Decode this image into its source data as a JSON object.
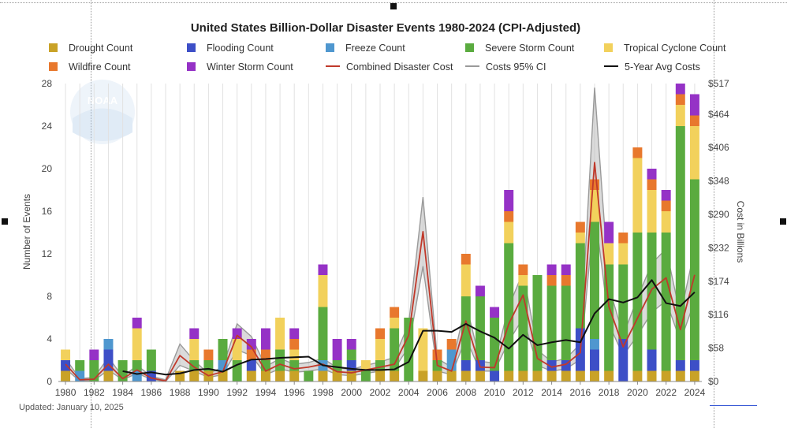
{
  "chart_data": {
    "type": "bar",
    "title": "United States Billion-Dollar Disaster Events 1980-2024 (CPI-Adjusted)",
    "ylabel": "Number of Events",
    "y2label": "Cost in Billions",
    "ylim": [
      0,
      28
    ],
    "y2lim": [
      0,
      517
    ],
    "yticks": [
      "0",
      "4",
      "8",
      "12",
      "16",
      "20",
      "24",
      "28"
    ],
    "y2ticks": [
      "$0",
      "$58",
      "$116",
      "$174",
      "$232",
      "$290",
      "$348",
      "$406",
      "$464",
      "$517"
    ],
    "xticks": [
      "1980",
      "1982",
      "1984",
      "1986",
      "1988",
      "1990",
      "1992",
      "1994",
      "1996",
      "1998",
      "2000",
      "2002",
      "2004",
      "2006",
      "2008",
      "2010",
      "2012",
      "2014",
      "2016",
      "2018",
      "2020",
      "2022",
      "2024"
    ],
    "grid": "vertical",
    "legend_position": "top",
    "categories": [
      1980,
      1981,
      1982,
      1983,
      1984,
      1985,
      1986,
      1987,
      1988,
      1989,
      1990,
      1991,
      1992,
      1993,
      1994,
      1995,
      1996,
      1997,
      1998,
      1999,
      2000,
      2001,
      2002,
      2003,
      2004,
      2005,
      2006,
      2007,
      2008,
      2009,
      2010,
      2011,
      2012,
      2013,
      2014,
      2015,
      2016,
      2017,
      2018,
      2019,
      2020,
      2021,
      2022,
      2023,
      2024
    ],
    "bar_series": [
      {
        "name": "Drought Count",
        "color": "#c9a227",
        "values": [
          1,
          0,
          0,
          1,
          0,
          0,
          0,
          0,
          1,
          1,
          1,
          1,
          0,
          1,
          1,
          1,
          1,
          0,
          1,
          1,
          1,
          0,
          1,
          1,
          0,
          1,
          1,
          1,
          1,
          1,
          0,
          1,
          1,
          1,
          1,
          1,
          1,
          1,
          1,
          0,
          1,
          1,
          1,
          1,
          1
        ]
      },
      {
        "name": "Flooding Count",
        "color": "#3d4fc7",
        "values": [
          1,
          0,
          0,
          2,
          0,
          0,
          1,
          0,
          0,
          0,
          0,
          0,
          0,
          1,
          0,
          0,
          0,
          0,
          0,
          0,
          1,
          0,
          0,
          0,
          0,
          0,
          0,
          0,
          1,
          1,
          1,
          0,
          0,
          0,
          1,
          1,
          4,
          2,
          0,
          4,
          0,
          2,
          0,
          1,
          1
        ]
      },
      {
        "name": "Freeze Count",
        "color": "#4f97cf",
        "values": [
          0,
          1,
          0,
          1,
          0,
          1,
          0,
          0,
          0,
          0,
          0,
          1,
          0,
          0,
          0,
          0,
          0,
          0,
          1,
          0,
          0,
          0,
          0,
          0,
          0,
          0,
          0,
          2,
          0,
          0,
          0,
          0,
          0,
          0,
          0,
          0,
          0,
          1,
          0,
          0,
          0,
          0,
          0,
          0,
          0
        ]
      },
      {
        "name": "Severe Storm Count",
        "color": "#5aab3f",
        "values": [
          0,
          1,
          2,
          0,
          2,
          1,
          2,
          0,
          0,
          1,
          1,
          2,
          2,
          0,
          1,
          2,
          1,
          1,
          5,
          1,
          1,
          1,
          1,
          4,
          6,
          0,
          1,
          0,
          6,
          6,
          5,
          12,
          8,
          9,
          7,
          7,
          8,
          11,
          10,
          7,
          13,
          11,
          13,
          22,
          17
        ]
      },
      {
        "name": "Tropical Cyclone Count",
        "color": "#f2d15c",
        "values": [
          1,
          0,
          0,
          0,
          0,
          3,
          0,
          0,
          0,
          2,
          0,
          0,
          2,
          0,
          0,
          3,
          1,
          0,
          3,
          0,
          0,
          1,
          2,
          1,
          0,
          4,
          0,
          0,
          3,
          0,
          0,
          2,
          1,
          0,
          0,
          0,
          1,
          3,
          2,
          2,
          7,
          4,
          2,
          2,
          5
        ]
      },
      {
        "name": "Wildfire Count",
        "color": "#e8782d",
        "values": [
          0,
          0,
          0,
          0,
          0,
          0,
          0,
          0,
          0,
          0,
          1,
          0,
          0,
          1,
          1,
          0,
          1,
          0,
          0,
          0,
          0,
          0,
          1,
          1,
          0,
          0,
          1,
          1,
          1,
          0,
          0,
          1,
          1,
          0,
          1,
          1,
          1,
          1,
          0,
          1,
          1,
          1,
          1,
          1,
          1
        ]
      },
      {
        "name": "Winter Storm Count",
        "color": "#9532c6",
        "values": [
          0,
          0,
          1,
          0,
          0,
          1,
          0,
          0,
          0,
          1,
          0,
          0,
          1,
          1,
          2,
          0,
          1,
          0,
          1,
          2,
          1,
          0,
          0,
          0,
          0,
          0,
          0,
          0,
          0,
          1,
          1,
          2,
          0,
          0,
          1,
          1,
          0,
          0,
          2,
          0,
          0,
          1,
          1,
          1,
          2
        ]
      }
    ],
    "line_series": [
      {
        "name": "Combined Disaster Cost",
        "color": "#c0392b",
        "values": [
          30,
          3,
          4,
          30,
          5,
          20,
          6,
          1,
          45,
          25,
          10,
          17,
          80,
          60,
          18,
          30,
          22,
          25,
          30,
          17,
          15,
          20,
          25,
          30,
          80,
          260,
          28,
          18,
          105,
          25,
          24,
          100,
          150,
          40,
          25,
          30,
          50,
          380,
          130,
          60,
          110,
          160,
          180,
          90,
          185
        ]
      },
      {
        "name": "Costs 95% CI",
        "color": "#9a9a9a",
        "band": true,
        "lower": [
          22,
          1,
          2,
          20,
          3,
          14,
          4,
          0,
          28,
          18,
          7,
          12,
          55,
          45,
          12,
          22,
          16,
          18,
          22,
          12,
          10,
          14,
          18,
          22,
          60,
          200,
          18,
          12,
          75,
          18,
          18,
          70,
          110,
          28,
          18,
          22,
          38,
          300,
          100,
          45,
          80,
          120,
          140,
          70,
          140
        ],
        "upper": [
          40,
          5,
          7,
          42,
          8,
          28,
          9,
          3,
          65,
          36,
          14,
          25,
          100,
          78,
          26,
          40,
          30,
          33,
          40,
          24,
          21,
          28,
          34,
          42,
          100,
          320,
          40,
          25,
          135,
          35,
          32,
          130,
          190,
          55,
          34,
          40,
          65,
          510,
          165,
          80,
          145,
          205,
          230,
          115,
          230
        ]
      },
      {
        "name": "5-Year Avg Costs",
        "color": "#111111",
        "values": [
          null,
          null,
          null,
          null,
          18,
          13,
          16,
          12,
          14,
          20,
          22,
          17,
          29,
          38,
          39,
          41,
          42,
          43,
          28,
          25,
          22,
          20,
          20,
          21,
          34,
          88,
          88,
          86,
          100,
          87,
          76,
          57,
          81,
          63,
          68,
          72,
          68,
          118,
          143,
          137,
          146,
          176,
          136,
          131,
          155
        ]
      }
    ]
  },
  "legend": [
    {
      "label": "Drought Count",
      "kind": "swatch",
      "color": "#c9a227"
    },
    {
      "label": "Flooding Count",
      "kind": "swatch",
      "color": "#3d4fc7"
    },
    {
      "label": "Freeze Count",
      "kind": "swatch",
      "color": "#4f97cf"
    },
    {
      "label": "Severe Storm Count",
      "kind": "swatch",
      "color": "#5aab3f"
    },
    {
      "label": "Tropical Cyclone Count",
      "kind": "swatch",
      "color": "#f2d15c"
    },
    {
      "label": "Wildfire Count",
      "kind": "swatch",
      "color": "#e8782d"
    },
    {
      "label": "Winter Storm Count",
      "kind": "swatch",
      "color": "#9532c6"
    },
    {
      "label": "Combined Disaster Cost",
      "kind": "line",
      "color": "#c0392b"
    },
    {
      "label": "Costs 95% CI",
      "kind": "line",
      "color": "#9a9a9a"
    },
    {
      "label": "5-Year Avg Costs",
      "kind": "line",
      "color": "#111111"
    }
  ],
  "watermark": "NOAA",
  "footer": "Updated: January 10, 2025"
}
